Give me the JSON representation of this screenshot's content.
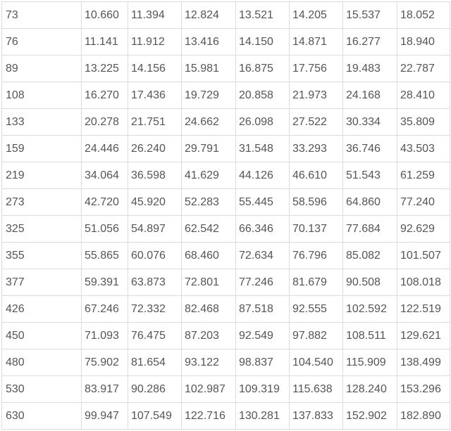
{
  "table": {
    "rows": [
      [
        "73",
        "10.660",
        "11.394",
        "12.824",
        "13.521",
        "14.205",
        "15.537",
        "18.052"
      ],
      [
        "76",
        "11.141",
        "11.912",
        "13.416",
        "14.150",
        "14.871",
        "16.277",
        "18.940"
      ],
      [
        "89",
        "13.225",
        "14.156",
        "15.981",
        "16.875",
        "17.756",
        "19.483",
        "22.787"
      ],
      [
        "108",
        "16.270",
        "17.436",
        "19.729",
        "20.858",
        "21.973",
        "24.168",
        "28.410"
      ],
      [
        "133",
        "20.278",
        "21.751",
        "24.662",
        "26.098",
        "27.522",
        "30.334",
        "35.809"
      ],
      [
        "159",
        "24.446",
        "26.240",
        "29.791",
        "31.548",
        "33.293",
        "36.746",
        "43.503"
      ],
      [
        "219",
        "34.064",
        "36.598",
        "41.629",
        "44.126",
        "46.610",
        "51.543",
        "61.259"
      ],
      [
        "273",
        "42.720",
        "45.920",
        "52.283",
        "55.445",
        "58.596",
        "64.860",
        "77.240"
      ],
      [
        "325",
        "51.056",
        "54.897",
        "62.542",
        "66.346",
        "70.137",
        "77.684",
        "92.629"
      ],
      [
        "355",
        "55.865",
        "60.076",
        "68.460",
        "72.634",
        "76.796",
        "85.082",
        "101.507"
      ],
      [
        "377",
        "59.391",
        "63.873",
        "72.801",
        "77.246",
        "81.679",
        "90.508",
        "108.018"
      ],
      [
        "426",
        "67.246",
        "72.332",
        "82.468",
        "87.518",
        "92.555",
        "102.592",
        "122.519"
      ],
      [
        "450",
        "71.093",
        "76.475",
        "87.203",
        "92.549",
        "97.882",
        "108.511",
        "129.621"
      ],
      [
        "480",
        "75.902",
        "81.654",
        "93.122",
        "98.837",
        "104.540",
        "115.909",
        "138.499"
      ],
      [
        "530",
        "83.917",
        "90.286",
        "102.987",
        "109.319",
        "115.638",
        "128.240",
        "153.296"
      ],
      [
        "630",
        "99.947",
        "107.549",
        "122.716",
        "130.281",
        "137.833",
        "152.902",
        "182.890"
      ]
    ]
  }
}
